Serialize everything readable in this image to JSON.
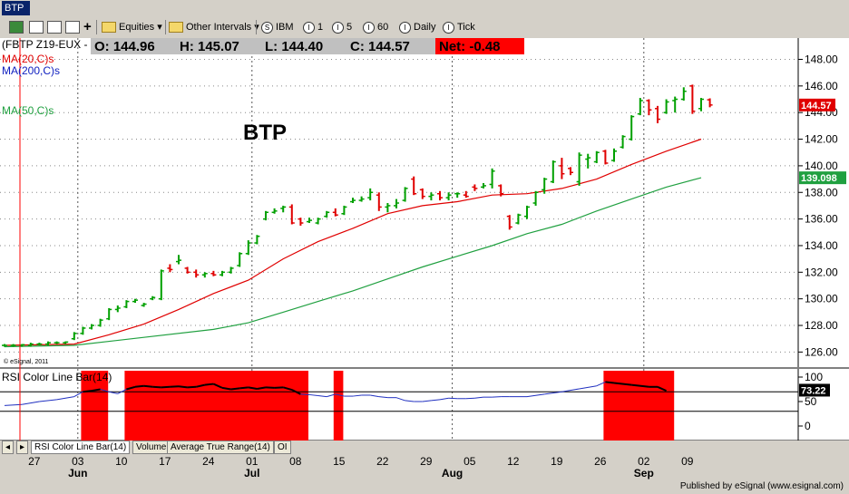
{
  "window": {
    "title": "BTP"
  },
  "toolbar": {
    "items": [
      {
        "label": "Equities",
        "icon": "folder-icon"
      },
      {
        "label": "Other Intervals",
        "icon": "folder-icon"
      },
      {
        "label": "IBM",
        "icon": "circle-s-icon",
        "glyph": "S"
      },
      {
        "label": "1",
        "icon": "circle-i-icon",
        "glyph": "I"
      },
      {
        "label": "5",
        "icon": "circle-i-icon",
        "glyph": "I"
      },
      {
        "label": "60",
        "icon": "circle-i-icon",
        "glyph": "I"
      },
      {
        "label": "Daily",
        "icon": "circle-i-icon",
        "glyph": "I"
      },
      {
        "label": "Tick",
        "icon": "circle-i-icon",
        "glyph": "I"
      }
    ]
  },
  "header": {
    "symbol": "(FBTP Z19-EUX -",
    "open": "O: 144.96",
    "high": "H: 145.07",
    "low": "L: 144.40",
    "close": "C: 144.57",
    "net": "Net: -0.48"
  },
  "legend": {
    "ma20": "MA(20,C)s",
    "ma200": "MA(200,C)s",
    "ma50": "MA(50,C)s"
  },
  "chart_label": "BTP",
  "copyright": "© eSignal, 2011",
  "bottom_tabs": [
    "RSI Color Line Bar(14)",
    "Volume",
    "Average True Range(14)",
    "OI"
  ],
  "credit": "Published by eSignal (www.esignal.com)",
  "colors": {
    "up": "#00a000",
    "down": "#e00000",
    "ma20": "#e00000",
    "ma50": "#20a040",
    "rsi": "#2030c0",
    "rsi_zone": "#ff0000"
  },
  "chart_data": [
    {
      "type": "candlestick",
      "title": "BTP",
      "y_range": [
        124.8,
        149.6
      ],
      "y_ticks": [
        "148.00",
        "146.00",
        "144.00",
        "142.00",
        "140.00",
        "138.00",
        "136.00",
        "134.00",
        "132.00",
        "130.00",
        "128.00",
        "126.00"
      ],
      "x_ticks": [
        {
          "label": "27",
          "i": 3
        },
        {
          "label": "03",
          "i": 8
        },
        {
          "label": "10",
          "i": 13
        },
        {
          "label": "17",
          "i": 18
        },
        {
          "label": "24",
          "i": 23
        },
        {
          "label": "01",
          "i": 28
        },
        {
          "label": "08",
          "i": 33
        },
        {
          "label": "15",
          "i": 38
        },
        {
          "label": "22",
          "i": 43
        },
        {
          "label": "29",
          "i": 48
        },
        {
          "label": "05",
          "i": 53
        },
        {
          "label": "12",
          "i": 58
        },
        {
          "label": "19",
          "i": 63
        },
        {
          "label": "26",
          "i": 68
        },
        {
          "label": "02",
          "i": 73
        },
        {
          "label": "09",
          "i": 78
        }
      ],
      "month_labels": [
        {
          "label": "Jun",
          "i": 8
        },
        {
          "label": "Jul",
          "i": 28
        },
        {
          "label": "Aug",
          "i": 51
        },
        {
          "label": "Sep",
          "i": 73
        }
      ],
      "ohlc": [
        {
          "i": 0,
          "o": 126.5,
          "h": 126.6,
          "l": 126.4,
          "c": 126.5
        },
        {
          "i": 1,
          "o": 126.5,
          "h": 126.6,
          "l": 126.4,
          "c": 126.5
        },
        {
          "i": 2,
          "o": 126.5,
          "h": 126.6,
          "l": 126.4,
          "c": 126.55
        },
        {
          "i": 3,
          "o": 126.5,
          "h": 126.7,
          "l": 126.4,
          "c": 126.6
        },
        {
          "i": 4,
          "o": 126.6,
          "h": 126.7,
          "l": 126.5,
          "c": 126.6
        },
        {
          "i": 5,
          "o": 126.6,
          "h": 126.8,
          "l": 126.5,
          "c": 126.7
        },
        {
          "i": 6,
          "o": 126.7,
          "h": 126.8,
          "l": 126.6,
          "c": 126.7
        },
        {
          "i": 7,
          "o": 126.7,
          "h": 126.8,
          "l": 126.6,
          "c": 126.75
        },
        {
          "i": 8,
          "o": 127.0,
          "h": 127.5,
          "l": 126.9,
          "c": 127.4
        },
        {
          "i": 9,
          "o": 127.4,
          "h": 127.9,
          "l": 127.3,
          "c": 127.8
        },
        {
          "i": 10,
          "o": 127.8,
          "h": 128.1,
          "l": 127.7,
          "c": 128.0
        },
        {
          "i": 11,
          "o": 128.0,
          "h": 128.5,
          "l": 127.9,
          "c": 128.4
        },
        {
          "i": 12,
          "o": 128.5,
          "h": 129.3,
          "l": 128.4,
          "c": 129.2
        },
        {
          "i": 13,
          "o": 129.2,
          "h": 129.5,
          "l": 129.0,
          "c": 129.3
        },
        {
          "i": 14,
          "o": 129.4,
          "h": 129.9,
          "l": 129.3,
          "c": 129.8
        },
        {
          "i": 15,
          "o": 129.8,
          "h": 130.0,
          "l": 129.7,
          "c": 129.9
        },
        {
          "i": 16,
          "o": 129.5,
          "h": 129.7,
          "l": 129.4,
          "c": 129.6
        },
        {
          "i": 17,
          "o": 130.0,
          "h": 130.2,
          "l": 129.9,
          "c": 130.1
        },
        {
          "i": 18,
          "o": 130.0,
          "h": 132.2,
          "l": 129.9,
          "c": 132.1
        },
        {
          "i": 19,
          "o": 132.3,
          "h": 132.6,
          "l": 132.0,
          "c": 132.2
        },
        {
          "i": 20,
          "o": 132.8,
          "h": 133.3,
          "l": 132.6,
          "c": 132.9
        },
        {
          "i": 21,
          "o": 132.3,
          "h": 132.4,
          "l": 131.9,
          "c": 132.0
        },
        {
          "i": 22,
          "o": 132.0,
          "h": 132.2,
          "l": 131.6,
          "c": 131.8
        },
        {
          "i": 23,
          "o": 131.8,
          "h": 132.0,
          "l": 131.6,
          "c": 131.9
        },
        {
          "i": 24,
          "o": 131.9,
          "h": 132.1,
          "l": 131.7,
          "c": 131.8
        },
        {
          "i": 25,
          "o": 131.8,
          "h": 132.1,
          "l": 131.7,
          "c": 132.0
        },
        {
          "i": 26,
          "o": 132.0,
          "h": 132.4,
          "l": 131.9,
          "c": 132.3
        },
        {
          "i": 27,
          "o": 132.5,
          "h": 133.5,
          "l": 132.4,
          "c": 133.4
        },
        {
          "i": 28,
          "o": 133.4,
          "h": 134.4,
          "l": 133.3,
          "c": 134.2
        },
        {
          "i": 29,
          "o": 134.2,
          "h": 134.8,
          "l": 134.1,
          "c": 134.7
        },
        {
          "i": 30,
          "o": 136.0,
          "h": 136.6,
          "l": 135.9,
          "c": 136.5
        },
        {
          "i": 31,
          "o": 136.5,
          "h": 136.8,
          "l": 136.4,
          "c": 136.6
        },
        {
          "i": 32,
          "o": 136.8,
          "h": 137.0,
          "l": 136.5,
          "c": 136.9
        },
        {
          "i": 33,
          "o": 136.9,
          "h": 137.1,
          "l": 135.6,
          "c": 135.7
        },
        {
          "i": 34,
          "o": 136.0,
          "h": 136.1,
          "l": 135.5,
          "c": 135.7
        },
        {
          "i": 35,
          "o": 135.8,
          "h": 136.1,
          "l": 135.7,
          "c": 135.9
        },
        {
          "i": 36,
          "o": 135.7,
          "h": 136.1,
          "l": 135.6,
          "c": 136.0
        },
        {
          "i": 37,
          "o": 136.2,
          "h": 136.6,
          "l": 136.1,
          "c": 136.5
        },
        {
          "i": 38,
          "o": 136.5,
          "h": 136.8,
          "l": 136.2,
          "c": 136.3
        },
        {
          "i": 39,
          "o": 136.4,
          "h": 137.0,
          "l": 136.3,
          "c": 136.9
        },
        {
          "i": 40,
          "o": 137.3,
          "h": 137.6,
          "l": 137.2,
          "c": 137.4
        },
        {
          "i": 41,
          "o": 137.4,
          "h": 137.7,
          "l": 137.3,
          "c": 137.5
        },
        {
          "i": 42,
          "o": 137.6,
          "h": 138.3,
          "l": 137.4,
          "c": 138.0
        },
        {
          "i": 43,
          "o": 137.8,
          "h": 138.0,
          "l": 136.6,
          "c": 136.9
        },
        {
          "i": 44,
          "o": 136.9,
          "h": 137.2,
          "l": 136.5,
          "c": 137.0
        },
        {
          "i": 45,
          "o": 137.0,
          "h": 137.5,
          "l": 136.8,
          "c": 137.2
        },
        {
          "i": 46,
          "o": 137.4,
          "h": 138.4,
          "l": 137.3,
          "c": 138.3
        },
        {
          "i": 47,
          "o": 139.0,
          "h": 139.2,
          "l": 137.8,
          "c": 137.9
        },
        {
          "i": 48,
          "o": 138.2,
          "h": 138.3,
          "l": 137.5,
          "c": 137.7
        },
        {
          "i": 49,
          "o": 137.7,
          "h": 138.0,
          "l": 137.4,
          "c": 137.8
        },
        {
          "i": 50,
          "o": 137.9,
          "h": 138.1,
          "l": 137.4,
          "c": 137.6
        },
        {
          "i": 51,
          "o": 137.6,
          "h": 138.0,
          "l": 137.4,
          "c": 137.8
        },
        {
          "i": 52,
          "o": 137.9,
          "h": 138.0,
          "l": 137.6,
          "c": 137.9
        },
        {
          "i": 53,
          "o": 137.8,
          "h": 138.1,
          "l": 137.6,
          "c": 137.7
        },
        {
          "i": 54,
          "o": 138.4,
          "h": 138.6,
          "l": 138.1,
          "c": 138.3
        },
        {
          "i": 55,
          "o": 138.4,
          "h": 138.7,
          "l": 138.3,
          "c": 138.5
        },
        {
          "i": 56,
          "o": 138.6,
          "h": 139.8,
          "l": 138.3,
          "c": 139.6
        },
        {
          "i": 57,
          "o": 138.5,
          "h": 138.6,
          "l": 137.7,
          "c": 137.9
        },
        {
          "i": 58,
          "o": 136.2,
          "h": 136.3,
          "l": 135.2,
          "c": 135.4
        },
        {
          "i": 59,
          "o": 135.7,
          "h": 136.4,
          "l": 135.6,
          "c": 136.3
        },
        {
          "i": 60,
          "o": 136.2,
          "h": 137.0,
          "l": 136.0,
          "c": 136.9
        },
        {
          "i": 61,
          "o": 137.2,
          "h": 138.1,
          "l": 137.0,
          "c": 138.0
        },
        {
          "i": 62,
          "o": 138.2,
          "h": 139.1,
          "l": 137.9,
          "c": 139.0
        },
        {
          "i": 63,
          "o": 138.8,
          "h": 140.4,
          "l": 138.7,
          "c": 140.3
        },
        {
          "i": 64,
          "o": 140.0,
          "h": 140.6,
          "l": 139.0,
          "c": 139.4
        },
        {
          "i": 65,
          "o": 139.8,
          "h": 139.9,
          "l": 139.3,
          "c": 139.5
        },
        {
          "i": 66,
          "o": 138.8,
          "h": 141.0,
          "l": 138.5,
          "c": 140.8
        },
        {
          "i": 67,
          "o": 140.5,
          "h": 140.9,
          "l": 139.8,
          "c": 140.6
        },
        {
          "i": 68,
          "o": 140.3,
          "h": 141.1,
          "l": 140.2,
          "c": 141.0
        },
        {
          "i": 69,
          "o": 141.1,
          "h": 141.2,
          "l": 140.1,
          "c": 140.2
        },
        {
          "i": 70,
          "o": 140.4,
          "h": 141.3,
          "l": 140.3,
          "c": 141.1
        },
        {
          "i": 71,
          "o": 141.4,
          "h": 142.3,
          "l": 141.3,
          "c": 142.2
        },
        {
          "i": 72,
          "o": 142.0,
          "h": 143.8,
          "l": 141.9,
          "c": 143.7
        },
        {
          "i": 73,
          "o": 143.9,
          "h": 145.1,
          "l": 143.8,
          "c": 144.9
        },
        {
          "i": 74,
          "o": 144.9,
          "h": 145.0,
          "l": 143.8,
          "c": 144.2
        },
        {
          "i": 75,
          "o": 144.3,
          "h": 144.5,
          "l": 143.2,
          "c": 143.5
        },
        {
          "i": 76,
          "o": 144.0,
          "h": 145.0,
          "l": 143.9,
          "c": 144.8
        },
        {
          "i": 77,
          "o": 144.9,
          "h": 145.2,
          "l": 144.0,
          "c": 145.0
        },
        {
          "i": 78,
          "o": 145.0,
          "h": 145.9,
          "l": 144.9,
          "c": 145.6
        },
        {
          "i": 79,
          "o": 146.0,
          "h": 146.1,
          "l": 143.9,
          "c": 144.1
        },
        {
          "i": 80,
          "o": 144.3,
          "h": 145.1,
          "l": 144.1,
          "c": 145.0
        },
        {
          "i": 81,
          "o": 144.96,
          "h": 145.07,
          "l": 144.4,
          "c": 144.57
        }
      ],
      "ma20": [
        [
          0,
          126.5
        ],
        [
          8,
          126.6
        ],
        [
          12,
          127.3
        ],
        [
          16,
          128.1
        ],
        [
          20,
          129.2
        ],
        [
          24,
          130.4
        ],
        [
          28,
          131.4
        ],
        [
          32,
          133.0
        ],
        [
          36,
          134.3
        ],
        [
          40,
          135.3
        ],
        [
          44,
          136.4
        ],
        [
          48,
          137.0
        ],
        [
          52,
          137.3
        ],
        [
          56,
          137.8
        ],
        [
          60,
          137.9
        ],
        [
          64,
          138.3
        ],
        [
          68,
          139.0
        ],
        [
          72,
          140.1
        ],
        [
          76,
          141.1
        ],
        [
          80,
          142.0
        ]
      ],
      "ma50": [
        [
          0,
          126.4
        ],
        [
          8,
          126.5
        ],
        [
          16,
          127.1
        ],
        [
          24,
          127.7
        ],
        [
          28,
          128.2
        ],
        [
          32,
          129.0
        ],
        [
          36,
          129.8
        ],
        [
          40,
          130.6
        ],
        [
          44,
          131.5
        ],
        [
          48,
          132.4
        ],
        [
          52,
          133.2
        ],
        [
          56,
          134.0
        ],
        [
          60,
          134.9
        ],
        [
          64,
          135.6
        ],
        [
          68,
          136.6
        ],
        [
          72,
          137.5
        ],
        [
          76,
          138.4
        ],
        [
          80,
          139.1
        ]
      ],
      "last_price": "144.57",
      "ma50_last": "139.098"
    },
    {
      "type": "line",
      "title": "RSI Color Line Bar(14)",
      "y_range": [
        0,
        100
      ],
      "y_ticks": [
        "100",
        "50",
        "0"
      ],
      "levels": [
        70,
        30
      ],
      "last_value": "73.22",
      "zones": [
        [
          9,
          11
        ],
        [
          14,
          34
        ],
        [
          38,
          38
        ],
        [
          69,
          76
        ]
      ],
      "values": [
        [
          0,
          42
        ],
        [
          2,
          44
        ],
        [
          4,
          50
        ],
        [
          6,
          54
        ],
        [
          8,
          60
        ],
        [
          9,
          70
        ],
        [
          10,
          72
        ],
        [
          11,
          75
        ],
        [
          12,
          70
        ],
        [
          13,
          66
        ],
        [
          14,
          75
        ],
        [
          15,
          80
        ],
        [
          16,
          82
        ],
        [
          17,
          80
        ],
        [
          18,
          79
        ],
        [
          19,
          80
        ],
        [
          20,
          81
        ],
        [
          21,
          79
        ],
        [
          22,
          80
        ],
        [
          23,
          84
        ],
        [
          24,
          86
        ],
        [
          25,
          78
        ],
        [
          26,
          75
        ],
        [
          27,
          77
        ],
        [
          28,
          79
        ],
        [
          29,
          76
        ],
        [
          30,
          79
        ],
        [
          31,
          78
        ],
        [
          32,
          79
        ],
        [
          33,
          74
        ],
        [
          34,
          65
        ],
        [
          35,
          64
        ],
        [
          36,
          62
        ],
        [
          37,
          60
        ],
        [
          38,
          65
        ],
        [
          39,
          61
        ],
        [
          40,
          61
        ],
        [
          41,
          63
        ],
        [
          42,
          63
        ],
        [
          43,
          60
        ],
        [
          44,
          58
        ],
        [
          45,
          58
        ],
        [
          46,
          52
        ],
        [
          47,
          50
        ],
        [
          48,
          50
        ],
        [
          49,
          52
        ],
        [
          50,
          54
        ],
        [
          51,
          57
        ],
        [
          52,
          56
        ],
        [
          53,
          56
        ],
        [
          54,
          57
        ],
        [
          55,
          59
        ],
        [
          56,
          59
        ],
        [
          57,
          60
        ],
        [
          58,
          60
        ],
        [
          60,
          60
        ],
        [
          62,
          65
        ],
        [
          64,
          70
        ],
        [
          66,
          76
        ],
        [
          68,
          82
        ],
        [
          69,
          90
        ],
        [
          70,
          88
        ],
        [
          72,
          84
        ],
        [
          74,
          80
        ],
        [
          75,
          80
        ],
        [
          76,
          72
        ]
      ]
    }
  ]
}
